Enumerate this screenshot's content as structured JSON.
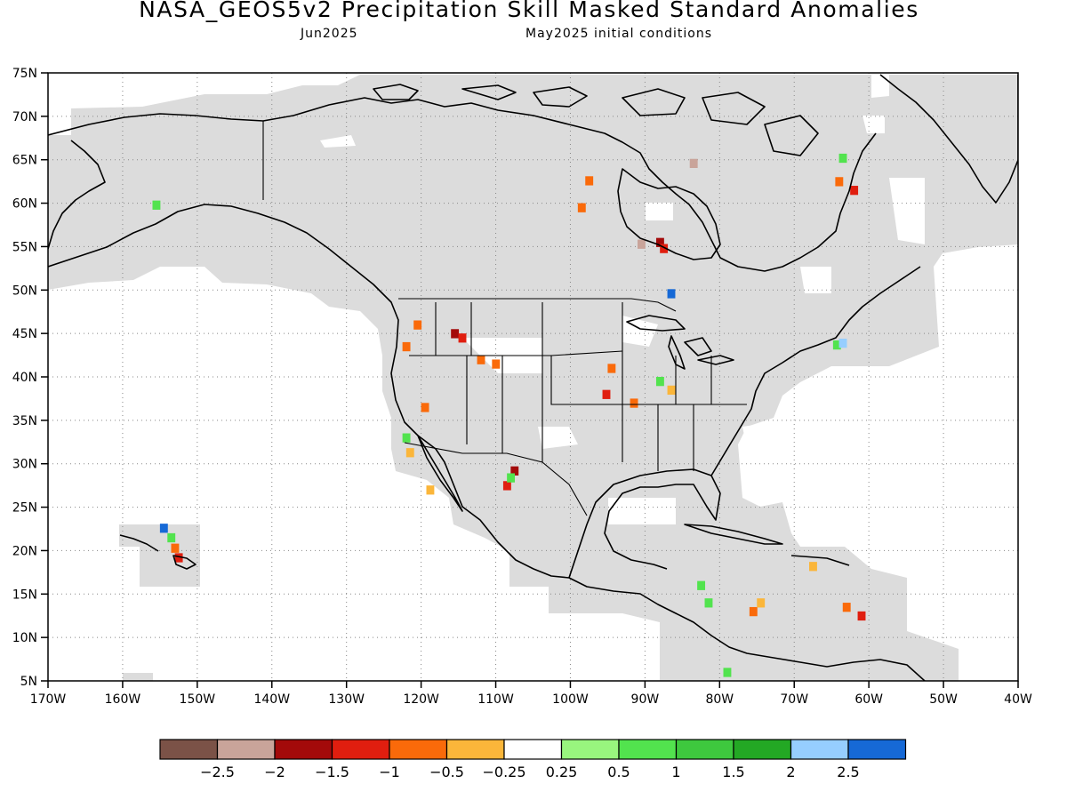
{
  "header": {
    "title": "NASA_GEOS5v2 Precipitation Skill Masked Standard Anomalies",
    "target_month": "Jun2025",
    "initial_conditions": "May2025 initial conditions"
  },
  "map": {
    "lon_range": [
      -170,
      -40
    ],
    "lat_range": [
      5,
      75
    ],
    "grid": "dotted",
    "mask_color": "#dcdcdc",
    "lat_ticks": [
      "75N",
      "70N",
      "65N",
      "60N",
      "55N",
      "50N",
      "45N",
      "40N",
      "35N",
      "30N",
      "25N",
      "20N",
      "15N",
      "10N",
      "5N"
    ],
    "lon_ticks": [
      "170W",
      "160W",
      "150W",
      "140W",
      "130W",
      "120W",
      "110W",
      "100W",
      "90W",
      "80W",
      "70W",
      "60W",
      "50W",
      "40W"
    ]
  },
  "colorbar": {
    "colors": [
      "#7b5247",
      "#c9a49a",
      "#a30a0a",
      "#e01e0f",
      "#fa6a0a",
      "#fbb63a",
      "#ffffff",
      "#98f57e",
      "#52e34e",
      "#3ec83e",
      "#23a824",
      "#96ceff",
      "#1669d6"
    ],
    "labels": [
      "−2.5",
      "−2",
      "−1.5",
      "−1",
      "−0.5",
      "−0.25",
      "0.25",
      "0.5",
      "1",
      "1.5",
      "2",
      "2.5"
    ]
  },
  "anomalies": [
    {
      "lon": -115.5,
      "lat": 45,
      "value": -1.7
    },
    {
      "lon": -114.5,
      "lat": 44.5,
      "value": -1.2
    },
    {
      "lon": -88,
      "lat": 55.5,
      "value": -1.6
    },
    {
      "lon": -87.5,
      "lat": 54.8,
      "value": -1.2
    },
    {
      "lon": -90.5,
      "lat": 55.3,
      "value": -2.1
    },
    {
      "lon": -83.5,
      "lat": 64.6,
      "value": -2.2
    },
    {
      "lon": -62,
      "lat": 61.5,
      "value": -1.3
    },
    {
      "lon": -64,
      "lat": 62.5,
      "value": -1.0
    },
    {
      "lon": -63.5,
      "lat": 65.2,
      "value": 0.6
    },
    {
      "lon": -152.5,
      "lat": 19.2,
      "value": -1.3
    },
    {
      "lon": -153,
      "lat": 20.3,
      "value": -0.8
    },
    {
      "lon": -153.5,
      "lat": 21.5,
      "value": 0.6
    },
    {
      "lon": -154.5,
      "lat": 22.6,
      "value": 2.6
    },
    {
      "lon": -98.5,
      "lat": 59.5,
      "value": -0.8
    },
    {
      "lon": -97.5,
      "lat": 62.6,
      "value": -0.6
    },
    {
      "lon": -86.5,
      "lat": 49.6,
      "value": 2.7
    },
    {
      "lon": -122,
      "lat": 43.5,
      "value": -0.7
    },
    {
      "lon": -120.5,
      "lat": 46,
      "value": -0.8
    },
    {
      "lon": -112,
      "lat": 42,
      "value": -0.9
    },
    {
      "lon": -110,
      "lat": 41.5,
      "value": -0.6
    },
    {
      "lon": -94.5,
      "lat": 41,
      "value": -0.9
    },
    {
      "lon": -95.2,
      "lat": 38,
      "value": -1.2
    },
    {
      "lon": -91.5,
      "lat": 37,
      "value": -0.7
    },
    {
      "lon": -86.5,
      "lat": 38.5,
      "value": -0.4
    },
    {
      "lon": -88,
      "lat": 39.5,
      "value": 0.6
    },
    {
      "lon": -122,
      "lat": 33,
      "value": 0.6
    },
    {
      "lon": -121.5,
      "lat": 31.3,
      "value": -0.4
    },
    {
      "lon": -119.5,
      "lat": 36.5,
      "value": -0.9
    },
    {
      "lon": -118.8,
      "lat": 27,
      "value": -0.4
    },
    {
      "lon": -108.5,
      "lat": 27.5,
      "value": -1.1
    },
    {
      "lon": -107.5,
      "lat": 29.2,
      "value": -1.6
    },
    {
      "lon": -108,
      "lat": 28.4,
      "value": 0.6
    },
    {
      "lon": -82.5,
      "lat": 16,
      "value": 0.7
    },
    {
      "lon": -81.5,
      "lat": 14,
      "value": 0.6
    },
    {
      "lon": -75.5,
      "lat": 13,
      "value": -0.7
    },
    {
      "lon": -74.5,
      "lat": 14,
      "value": -0.4
    },
    {
      "lon": -61,
      "lat": 12.5,
      "value": -1.3
    },
    {
      "lon": -63,
      "lat": 13.5,
      "value": -0.9
    },
    {
      "lon": -64.3,
      "lat": 43.7,
      "value": 0.6
    },
    {
      "lon": -63.5,
      "lat": 43.9,
      "value": 2.3
    },
    {
      "lon": -67.5,
      "lat": 18.2,
      "value": -0.4
    },
    {
      "lon": -79,
      "lat": 6,
      "value": 0.6
    },
    {
      "lon": -155.5,
      "lat": 59.8,
      "value": 0.9
    }
  ]
}
